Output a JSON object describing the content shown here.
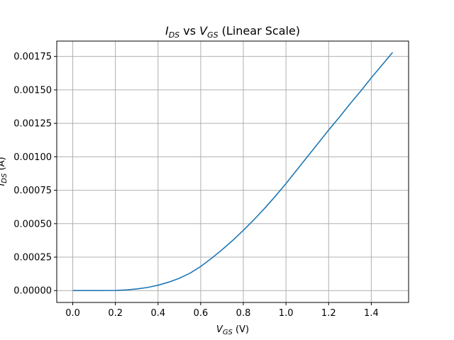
{
  "chart_data": {
    "type": "line",
    "title": "I_DS vs V_GS (Linear Scale)",
    "title_parts": {
      "i": "I",
      "i_sub": "DS",
      "vs": " vs ",
      "v": "V",
      "v_sub": "GS",
      "rest": " (Linear Scale)"
    },
    "xlabel": "V_GS (V)",
    "xlabel_parts": {
      "v": "V",
      "v_sub": "GS",
      "rest": " (V)"
    },
    "ylabel": "I_DS (A)",
    "ylabel_parts": {
      "i": "I",
      "i_sub": "DS",
      "rest": " (A)"
    },
    "xlim": [
      -0.075,
      1.575
    ],
    "ylim": [
      -8.88e-05,
      0.0018648
    ],
    "x_ticks": [
      0.0,
      0.2,
      0.4,
      0.6,
      0.8,
      1.0,
      1.2,
      1.4
    ],
    "x_tick_labels": [
      "0.0",
      "0.2",
      "0.4",
      "0.6",
      "0.8",
      "1.0",
      "1.2",
      "1.4"
    ],
    "y_ticks": [
      0.0,
      0.00025,
      0.0005,
      0.00075,
      0.001,
      0.00125,
      0.0015,
      0.00175
    ],
    "y_tick_labels": [
      "0.00000",
      "0.00025",
      "0.00050",
      "0.00075",
      "0.00100",
      "0.00125",
      "0.00150",
      "0.00175"
    ],
    "grid": true,
    "legend": "none",
    "series": [
      {
        "color": "#1f77b4",
        "x": [
          0.0,
          0.1,
          0.2,
          0.25,
          0.3,
          0.35,
          0.4,
          0.45,
          0.5,
          0.55,
          0.6,
          0.65,
          0.7,
          0.75,
          0.8,
          0.85,
          0.9,
          0.95,
          1.0,
          1.05,
          1.1,
          1.15,
          1.2,
          1.25,
          1.3,
          1.35,
          1.4,
          1.45,
          1.5
        ],
        "y": [
          0.0,
          0.0,
          1e-06,
          5e-06,
          1.2e-05,
          2.3e-05,
          4e-05,
          6.3e-05,
          9.2e-05,
          0.00013,
          0.00018,
          0.00024,
          0.000305,
          0.000375,
          0.00045,
          0.00053,
          0.000615,
          0.000705,
          0.0008,
          0.0009,
          0.001,
          0.0011,
          0.0012,
          0.001295,
          0.001395,
          0.00149,
          0.00159,
          0.001685,
          0.00178
        ]
      }
    ]
  }
}
